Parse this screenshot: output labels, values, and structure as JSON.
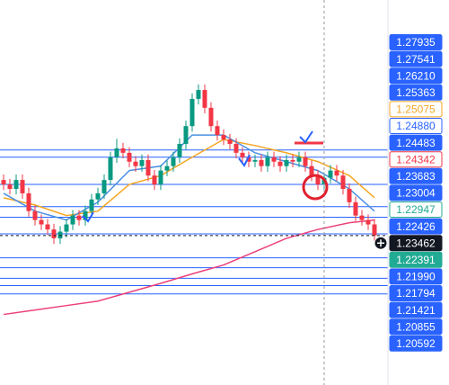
{
  "chart_data": {
    "type": "candlestick",
    "ylim": [
      1.2082,
      1.2775
    ],
    "open": [
      1.2451,
      1.2443,
      1.2435,
      1.2451,
      1.2427,
      1.2395,
      1.2379,
      1.2371,
      1.2362,
      1.2346,
      1.2358,
      1.2371,
      1.2387,
      1.2379,
      1.2395,
      1.2416,
      1.2427,
      1.2451,
      1.2492,
      1.2508,
      1.25,
      1.2484,
      1.2476,
      1.2487,
      1.2459,
      1.2443,
      1.2468,
      1.2476,
      1.2492,
      1.2516,
      1.2548,
      1.2597,
      1.2613,
      1.2581,
      1.2548,
      1.2532,
      1.2524,
      1.2516,
      1.25,
      1.2492,
      1.2484,
      1.2487,
      1.2476,
      1.2492,
      1.2484,
      1.2476,
      1.2487,
      1.2484,
      1.2492,
      1.2476,
      1.2459,
      1.2443,
      1.2455,
      1.2468,
      1.2459,
      1.2435,
      1.2411,
      1.2387,
      1.2379,
      1.2371
    ],
    "high": [
      1.2461,
      1.2453,
      1.2461,
      1.2461,
      1.2437,
      1.2405,
      1.2389,
      1.2381,
      1.2372,
      1.2368,
      1.2381,
      1.2397,
      1.2397,
      1.2405,
      1.2426,
      1.2437,
      1.2461,
      1.2502,
      1.2525,
      1.2518,
      1.251,
      1.2494,
      1.2497,
      1.2497,
      1.2469,
      1.2478,
      1.2486,
      1.2502,
      1.2526,
      1.2558,
      1.2607,
      1.2623,
      1.2623,
      1.2591,
      1.2558,
      1.2542,
      1.2534,
      1.2526,
      1.251,
      1.2502,
      1.2497,
      1.2497,
      1.2502,
      1.2502,
      1.2494,
      1.2497,
      1.2497,
      1.2502,
      1.2502,
      1.2486,
      1.2469,
      1.2465,
      1.2478,
      1.2478,
      1.2469,
      1.2445,
      1.2421,
      1.2397,
      1.2389,
      1.2381
    ],
    "low": [
      1.2433,
      1.2425,
      1.2425,
      1.2417,
      1.2385,
      1.2369,
      1.2361,
      1.2352,
      1.2336,
      1.2336,
      1.2348,
      1.2361,
      1.2369,
      1.2369,
      1.2385,
      1.2406,
      1.2417,
      1.2441,
      1.2482,
      1.249,
      1.2474,
      1.2466,
      1.2466,
      1.2449,
      1.2433,
      1.2433,
      1.2458,
      1.2466,
      1.2482,
      1.2506,
      1.2538,
      1.2587,
      1.2571,
      1.2538,
      1.2522,
      1.2514,
      1.2506,
      1.249,
      1.2482,
      1.2474,
      1.2474,
      1.2466,
      1.2466,
      1.2474,
      1.2466,
      1.2466,
      1.2474,
      1.2474,
      1.2466,
      1.2449,
      1.2433,
      1.2433,
      1.2445,
      1.2449,
      1.2425,
      1.2401,
      1.2377,
      1.2369,
      1.2361,
      1.2341
    ],
    "close": [
      1.2443,
      1.2435,
      1.2451,
      1.2427,
      1.2395,
      1.2379,
      1.2371,
      1.2362,
      1.2346,
      1.2358,
      1.2371,
      1.2387,
      1.2379,
      1.2395,
      1.2416,
      1.2427,
      1.2451,
      1.2492,
      1.2508,
      1.25,
      1.2484,
      1.2476,
      1.2487,
      1.2459,
      1.2443,
      1.2468,
      1.2476,
      1.2492,
      1.2516,
      1.2548,
      1.2597,
      1.2613,
      1.2581,
      1.2548,
      1.2532,
      1.2524,
      1.2516,
      1.25,
      1.2492,
      1.2484,
      1.2487,
      1.2476,
      1.2492,
      1.2484,
      1.2476,
      1.2487,
      1.2484,
      1.2492,
      1.2476,
      1.2459,
      1.2443,
      1.2455,
      1.2468,
      1.2459,
      1.2435,
      1.2411,
      1.2387,
      1.2379,
      1.2371,
      1.2351
    ],
    "up_color": "#089981",
    "down_color": "#f23645",
    "levels": [
      1.2505,
      1.2492,
      1.2443,
      1.2403,
      1.2384,
      1.2354,
      1.2311,
      1.2293,
      1.2274,
      1.2261,
      1.2246
    ],
    "level_color": "#2962ff",
    "series": [
      {
        "color": "#ec407a",
        "x": [
          0,
          5,
          10,
          15,
          20,
          25,
          30,
          35,
          40,
          45,
          50,
          55,
          59
        ],
        "values": [
          1.2209,
          1.2217,
          1.2225,
          1.2233,
          1.2249,
          1.2265,
          1.2282,
          1.2298,
          1.2322,
          1.2346,
          1.2362,
          1.2374,
          1.2379
        ]
      },
      {
        "color": "#f5a623",
        "x": [
          0,
          5,
          10,
          15,
          20,
          25,
          30,
          35,
          40,
          45,
          50,
          55,
          59
        ],
        "values": [
          1.2419,
          1.2406,
          1.2387,
          1.2395,
          1.2443,
          1.2459,
          1.2492,
          1.2524,
          1.2513,
          1.25,
          1.2484,
          1.2459,
          1.2419
        ]
      },
      {
        "color": "#4a90e2",
        "x": [
          0,
          5,
          10,
          15,
          20,
          25,
          30,
          35,
          40,
          45,
          50,
          55,
          59
        ],
        "values": [
          1.2427,
          1.2395,
          1.2379,
          1.2411,
          1.2468,
          1.2476,
          1.2532,
          1.2532,
          1.25,
          1.2484,
          1.2468,
          1.2435,
          1.2395
        ]
      }
    ],
    "price_labels": [
      {
        "text": "1.27935",
        "background": "#2962ff",
        "color": "#ffffff"
      },
      {
        "text": "1.27541",
        "background": "#2962ff",
        "color": "#ffffff"
      },
      {
        "text": "1.26210",
        "background": "#2962ff",
        "color": "#ffffff"
      },
      {
        "text": "1.25363",
        "background": "#2962ff",
        "color": "#ffffff"
      },
      {
        "text": "1.25075",
        "background": "#ffffff",
        "color": "#f5a623"
      },
      {
        "text": "1.24880",
        "background": "#ffffff",
        "color": "#2962ff"
      },
      {
        "text": "1.24483",
        "background": "#2962ff",
        "color": "#ffffff"
      },
      {
        "text": "1.24342",
        "background": "#ffffff",
        "color": "#f23645"
      },
      {
        "text": "1.23683",
        "background": "#2962ff",
        "color": "#ffffff"
      },
      {
        "text": "1.23004",
        "background": "#2962ff",
        "color": "#ffffff"
      },
      {
        "text": "1.22947",
        "background": "#ffffff",
        "color": "#22ab94"
      },
      {
        "text": "1.22426",
        "background": "#2962ff",
        "color": "#ffffff"
      },
      {
        "text": "1.23462",
        "background": "#131722",
        "color": "#ffffff"
      },
      {
        "text": "1.22391",
        "background": "#22ab94",
        "color": "#ffffff"
      },
      {
        "text": "1.21990",
        "background": "#2962ff",
        "color": "#ffffff"
      },
      {
        "text": "1.21794",
        "background": "#2962ff",
        "color": "#ffffff"
      },
      {
        "text": "1.21421",
        "background": "#2962ff",
        "color": "#ffffff"
      },
      {
        "text": "1.20855",
        "background": "#2962ff",
        "color": "#ffffff"
      },
      {
        "text": "1.20592",
        "background": "#2962ff",
        "color": "#ffffff"
      }
    ]
  }
}
